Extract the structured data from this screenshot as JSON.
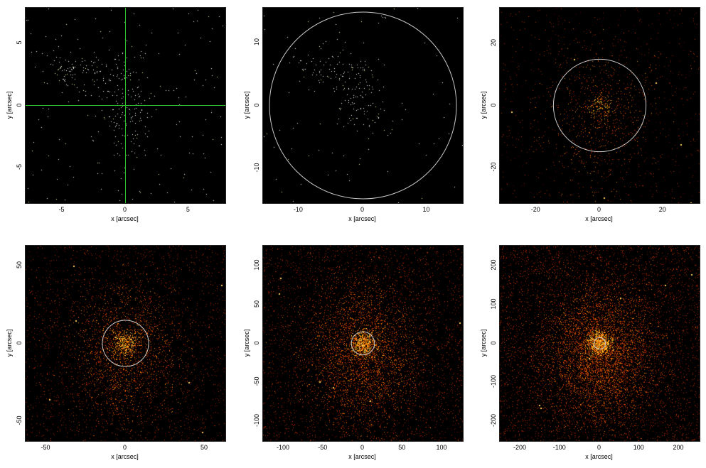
{
  "panels": [
    {
      "xlabel": "x [arcsec]",
      "ylabel": "y [arcsec]",
      "xlim": [
        -7.9,
        7.9
      ],
      "ylim": [
        -7.9,
        7.9
      ],
      "xticks": [
        -5,
        0,
        5
      ],
      "yticks": [
        -5,
        0,
        5
      ],
      "overlay": "crosshair",
      "overlay_color": "#2fbf2f",
      "style": "sparse",
      "density": 420
    },
    {
      "xlabel": "x [arcsec]",
      "ylabel": "y [arcsec]",
      "xlim": [
        -15.6,
        15.6
      ],
      "ylim": [
        -15.6,
        15.6
      ],
      "xticks": [
        -10,
        0,
        10
      ],
      "yticks": [
        -10,
        0,
        10
      ],
      "overlay": "circle",
      "circle_radius": 14.6,
      "overlay_color": "#c8c8c8",
      "style": "sparse",
      "density": 260
    },
    {
      "xlabel": "x [arcsec]",
      "ylabel": "y [arcsec]",
      "xlim": [
        -31.5,
        31.5
      ],
      "ylim": [
        -31.5,
        31.5
      ],
      "xticks": [
        -20,
        0,
        20
      ],
      "yticks": [
        -20,
        0,
        20
      ],
      "overlay": "circle",
      "circle_radius": 14.6,
      "overlay_color": "#c8c8c8",
      "style": "heat",
      "density": 1500
    },
    {
      "xlabel": "x [arcsec]",
      "ylabel": "y [arcsec]",
      "xlim": [
        -63,
        63
      ],
      "ylim": [
        -63,
        63
      ],
      "xticks": [
        -50,
        0,
        50
      ],
      "yticks": [
        -50,
        0,
        50
      ],
      "overlay": "circle",
      "circle_radius": 14.6,
      "overlay_color": "#c8c8c8",
      "style": "heat",
      "density": 4500
    },
    {
      "xlabel": "x [arcsec]",
      "ylabel": "y [arcsec]",
      "xlim": [
        -126,
        126
      ],
      "ylim": [
        -126,
        126
      ],
      "xticks": [
        -100,
        -50,
        0,
        50,
        100
      ],
      "yticks": [
        -100,
        -50,
        0,
        50,
        100
      ],
      "overlay": "circle",
      "circle_radius": 14.6,
      "overlay_color": "#c8c8c8",
      "style": "heat",
      "density": 7000
    },
    {
      "xlabel": "x [arcsec]",
      "ylabel": "y [arcsec]",
      "xlim": [
        -252,
        252
      ],
      "ylim": [
        -252,
        252
      ],
      "xticks": [
        -200,
        -100,
        0,
        100,
        200
      ],
      "yticks": [
        -200,
        -100,
        0,
        100,
        200
      ],
      "overlay": "circle",
      "circle_radius": 14.6,
      "overlay_color": "#c8c8c8",
      "style": "heat",
      "density": 10000
    }
  ]
}
